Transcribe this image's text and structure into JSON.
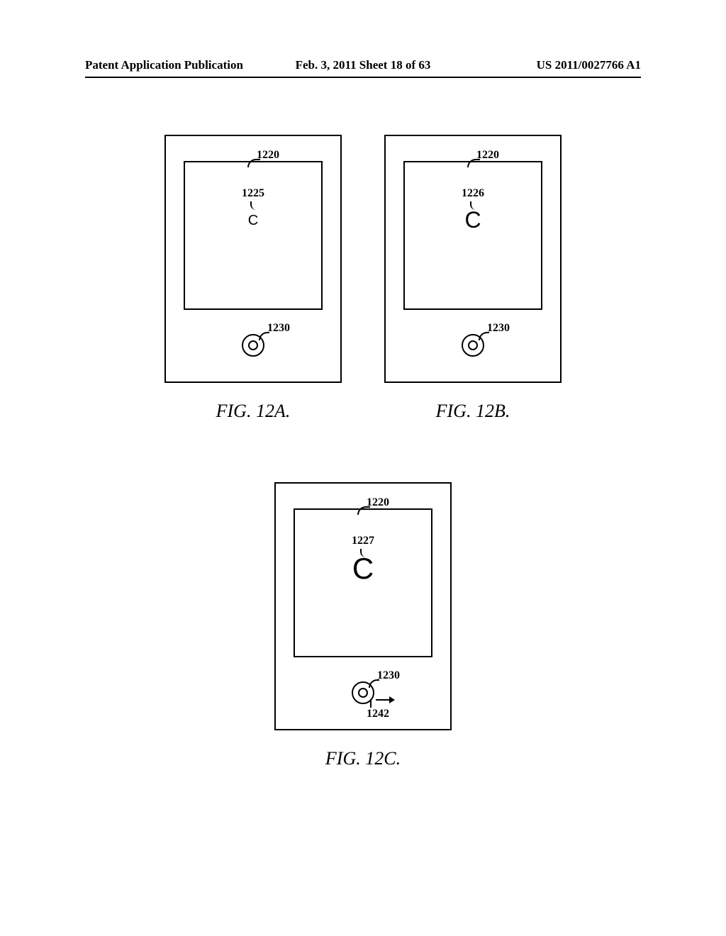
{
  "header": {
    "left": "Patent Application Publication",
    "center": "Feb. 3, 2011  Sheet 18 of 63",
    "right": "US 2011/0027766 A1"
  },
  "figures": {
    "fig_a": {
      "caption": "FIG. 12A.",
      "ref_1220": "1220",
      "ref_letter": "1225",
      "letter": "C",
      "ref_1230": "1230"
    },
    "fig_b": {
      "caption": "FIG. 12B.",
      "ref_1220": "1220",
      "ref_letter": "1226",
      "letter": "C",
      "ref_1230": "1230"
    },
    "fig_c": {
      "caption": "FIG. 12C.",
      "ref_1220": "1220",
      "ref_letter": "1227",
      "letter": "C",
      "ref_1230": "1230",
      "ref_1242": "1242"
    }
  }
}
